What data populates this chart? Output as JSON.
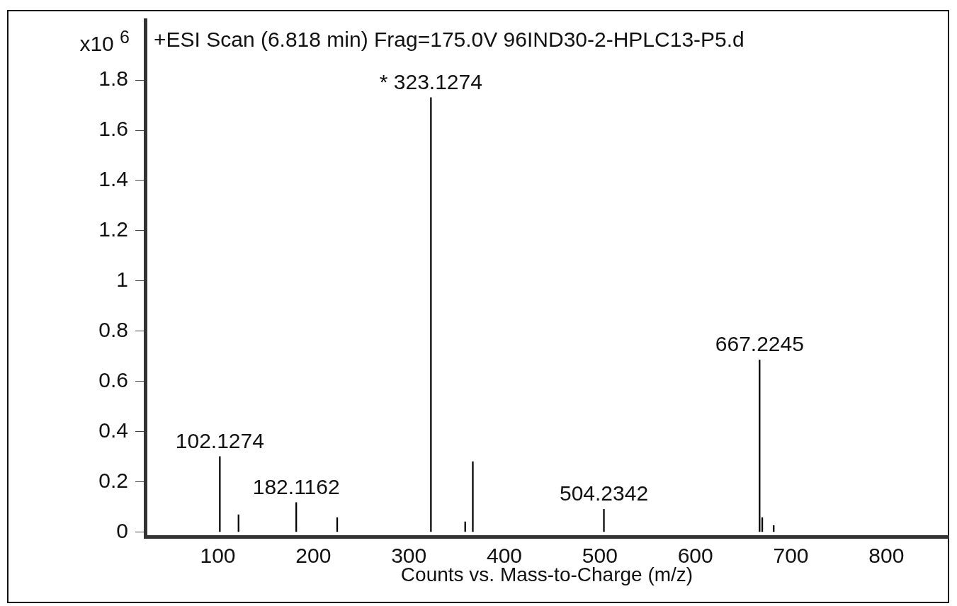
{
  "chart_data": {
    "type": "bar",
    "title": "+ESI Scan (6.818 min) Frag=175.0V 96IND30-2-HPLC13-P5.d",
    "xlabel": "Counts vs. Mass-to-Charge (m/z)",
    "ylabel": "x10 $^{6}$",
    "x": [
      102.1274,
      121.7,
      182.1162,
      225,
      323.1274,
      359,
      367,
      504.2342,
      667.2245,
      670,
      682
    ],
    "values": [
      0.3,
      0.068,
      0.117,
      0.057,
      1.73,
      0.04,
      0.28,
      0.09,
      0.685,
      0.057,
      0.025
    ],
    "color": "#000000",
    "xlim": [
      24,
      865
    ],
    "xticks": [
      100,
      200,
      300,
      400,
      500,
      600,
      700,
      800
    ],
    "ylim": [
      -0.02,
      2.04
    ],
    "yticks": [
      0,
      0.2,
      0.4,
      0.6,
      0.8,
      1,
      1.2,
      1.4,
      1.6,
      1.8
    ],
    "annotations": [
      {
        "text": "102.1274",
        "x": 102.1274,
        "y": 0.3
      },
      {
        "text": "182.1162",
        "x": 182.1162,
        "y": 0.117
      },
      {
        "text": "* 323.1274",
        "x": 323.1274,
        "y": 1.73
      },
      {
        "text": "504.2342",
        "x": 504.2342,
        "y": 0.09
      },
      {
        "text": "667.2245",
        "x": 667.2245,
        "y": 0.685
      }
    ],
    "grid": false,
    "legend": false
  }
}
